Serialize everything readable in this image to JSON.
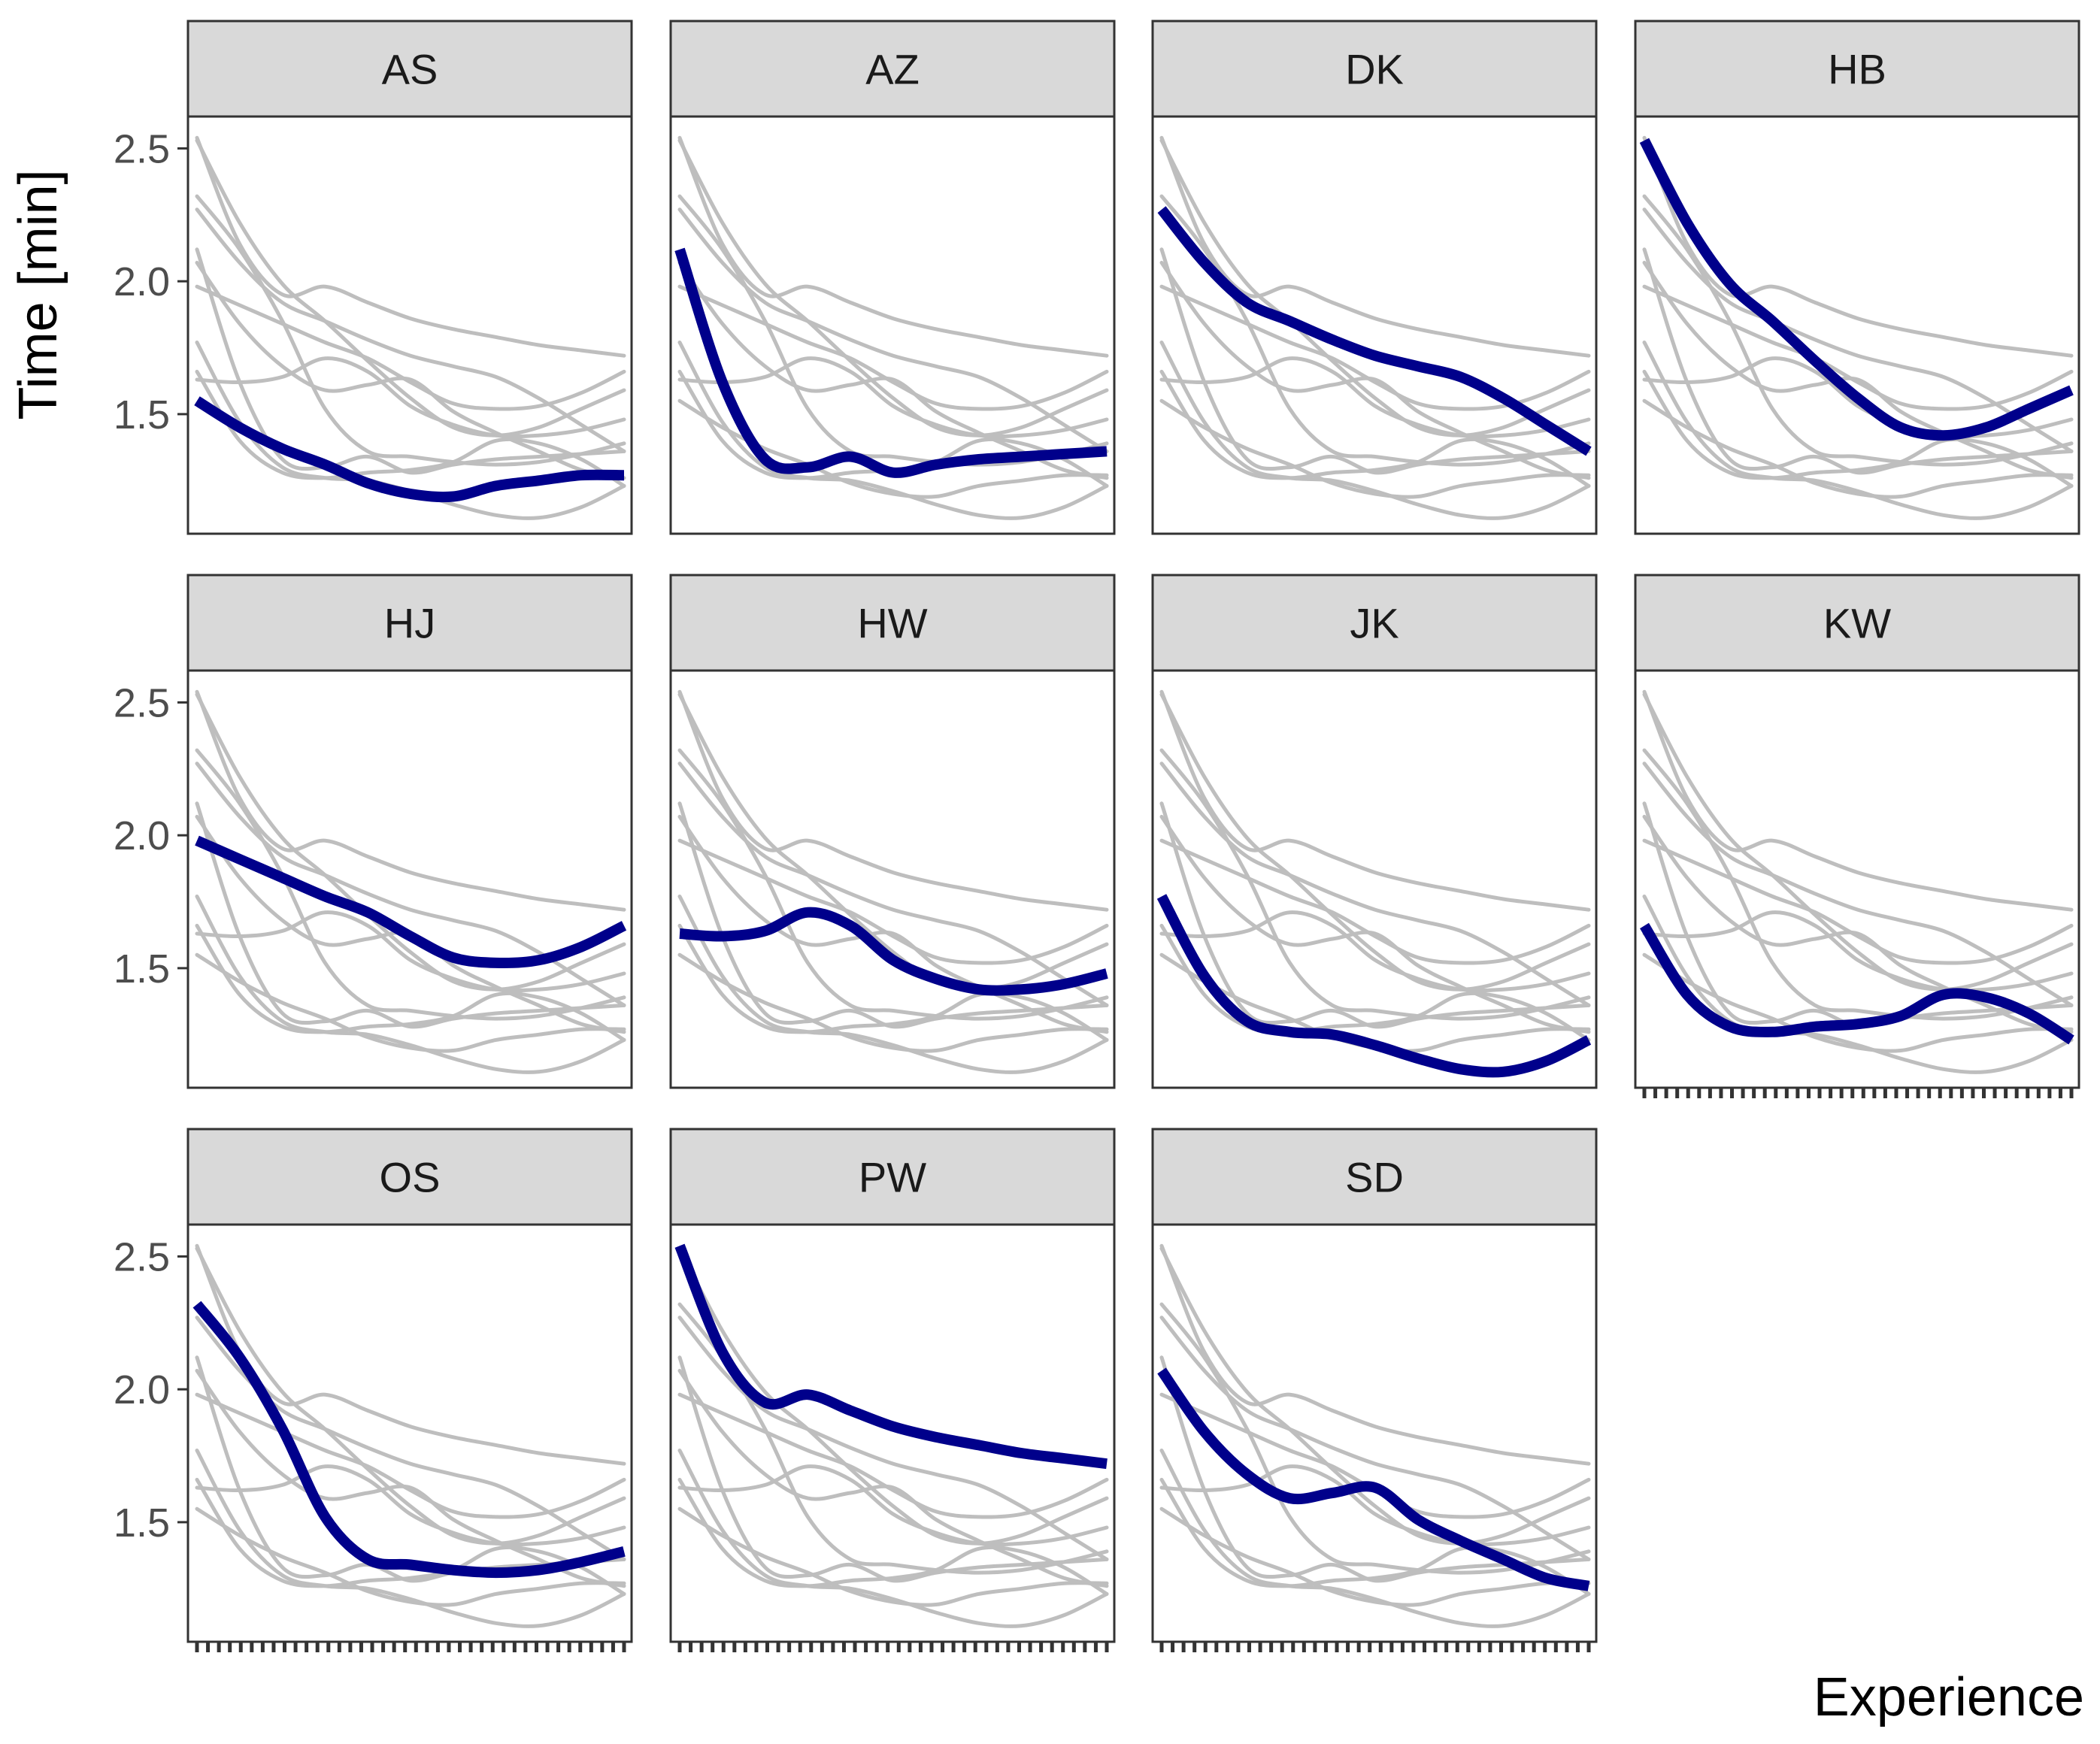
{
  "chart_data": {
    "type": "line",
    "subtype": "faceted-small-multiples",
    "xlabel": "Experience",
    "ylabel": "Time [min]",
    "ylim": [
      1.05,
      2.62
    ],
    "xlim": [
      0,
      1
    ],
    "yticks": [
      1.5,
      2.0,
      2.5
    ],
    "ytick_labels": [
      "1.5",
      "2.0",
      "2.5"
    ],
    "x_tick_count": 40,
    "highlight_color": "#00008B",
    "background_line_color": "#BEBEBE",
    "panel_layout": {
      "columns": 4,
      "rows": 3
    },
    "x": [
      0,
      0.1,
      0.2,
      0.3,
      0.4,
      0.5,
      0.6,
      0.7,
      0.8,
      0.9,
      1.0
    ],
    "series": [
      {
        "name": "AS",
        "values": [
          1.55,
          1.45,
          1.37,
          1.31,
          1.24,
          1.2,
          1.19,
          1.23,
          1.25,
          1.27,
          1.27
        ]
      },
      {
        "name": "AZ",
        "values": [
          2.12,
          1.62,
          1.33,
          1.3,
          1.34,
          1.28,
          1.31,
          1.33,
          1.34,
          1.35,
          1.36
        ]
      },
      {
        "name": "DK",
        "values": [
          2.27,
          2.07,
          1.92,
          1.85,
          1.78,
          1.72,
          1.68,
          1.64,
          1.56,
          1.46,
          1.36
        ]
      },
      {
        "name": "HB",
        "values": [
          2.53,
          2.22,
          1.99,
          1.85,
          1.7,
          1.56,
          1.45,
          1.42,
          1.45,
          1.52,
          1.59
        ]
      },
      {
        "name": "HJ",
        "values": [
          1.98,
          1.91,
          1.84,
          1.77,
          1.71,
          1.62,
          1.54,
          1.52,
          1.53,
          1.58,
          1.66
        ]
      },
      {
        "name": "HW",
        "values": [
          1.63,
          1.62,
          1.64,
          1.71,
          1.66,
          1.53,
          1.46,
          1.42,
          1.42,
          1.44,
          1.48
        ]
      },
      {
        "name": "JK",
        "values": [
          1.77,
          1.47,
          1.3,
          1.26,
          1.25,
          1.21,
          1.16,
          1.12,
          1.11,
          1.15,
          1.23
        ]
      },
      {
        "name": "KW",
        "values": [
          1.66,
          1.4,
          1.28,
          1.26,
          1.28,
          1.29,
          1.32,
          1.4,
          1.39,
          1.33,
          1.23
        ]
      },
      {
        "name": "OS",
        "values": [
          2.32,
          2.12,
          1.85,
          1.52,
          1.36,
          1.34,
          1.32,
          1.31,
          1.32,
          1.35,
          1.39
        ]
      },
      {
        "name": "PW",
        "values": [
          2.54,
          2.14,
          1.95,
          1.98,
          1.92,
          1.86,
          1.82,
          1.79,
          1.76,
          1.74,
          1.72
        ]
      },
      {
        "name": "SD",
        "values": [
          2.07,
          1.84,
          1.68,
          1.59,
          1.61,
          1.63,
          1.51,
          1.43,
          1.36,
          1.29,
          1.26
        ]
      }
    ]
  }
}
